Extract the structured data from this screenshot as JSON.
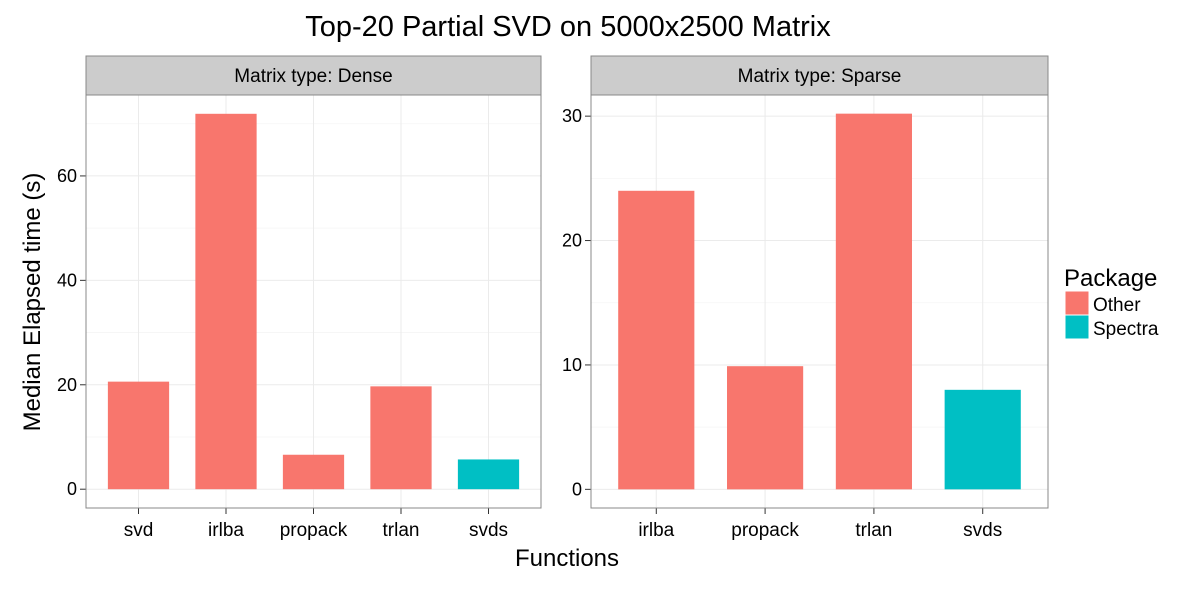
{
  "title": "Top-20 Partial SVD on 5000x2500 Matrix",
  "xlabel": "Functions",
  "ylabel": "Median Elapsed time (s)",
  "legend": {
    "title": "Package",
    "items": [
      {
        "label": "Other",
        "color": "#F8766D"
      },
      {
        "label": "Spectra",
        "color": "#00BFC4"
      }
    ]
  },
  "colors": {
    "Other": "#F8766D",
    "Spectra": "#00BFC4",
    "strip": "#CCCCCC",
    "grid": "#EBEBEB"
  },
  "chart_data": [
    {
      "type": "bar",
      "facet": "Matrix type: Dense",
      "categories": [
        "svd",
        "irlba",
        "propack",
        "trlan",
        "svds"
      ],
      "values": [
        20.6,
        71.9,
        6.6,
        19.7,
        5.7
      ],
      "package": [
        "Other",
        "Other",
        "Other",
        "Other",
        "Spectra"
      ],
      "yticks": [
        0,
        20,
        40,
        60
      ],
      "ylim": [
        -3.6,
        75.5
      ],
      "grid": true
    },
    {
      "type": "bar",
      "facet": "Matrix type: Sparse",
      "categories": [
        "irlba",
        "propack",
        "trlan",
        "svds"
      ],
      "values": [
        24.0,
        9.9,
        30.2,
        8.0
      ],
      "package": [
        "Other",
        "Other",
        "Other",
        "Spectra"
      ],
      "yticks": [
        0,
        10,
        20,
        30
      ],
      "ylim": [
        -1.5,
        31.7
      ],
      "grid": true
    }
  ]
}
